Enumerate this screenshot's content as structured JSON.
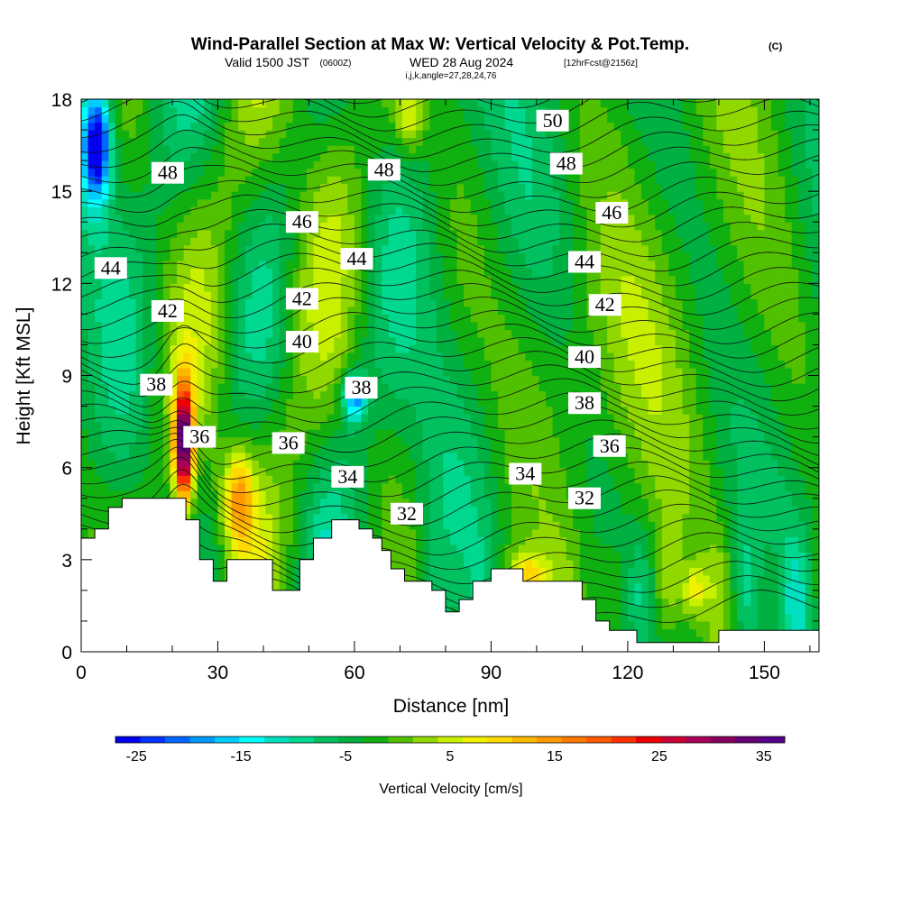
{
  "title": {
    "main": "Wind-Parallel Section at Max W: Vertical Velocity & Pot.Temp.",
    "main_suffix": "(C)",
    "sub_a": "Valid 1500 JST",
    "sub_b": "(0600Z)",
    "sub_c": "WED 28 Aug 2024",
    "sub_d": "[12hrFcst@2156z]",
    "ijk": "i,j,k,angle=27,28,24,76"
  },
  "chart_data": {
    "type": "heatmap",
    "title": "Wind-Parallel Section at Max W: Vertical Velocity & Pot.Temp.",
    "xlabel": "Distance [nm]",
    "ylabel": "Height [Kft MSL]",
    "xlim": [
      0,
      162
    ],
    "ylim": [
      0,
      18
    ],
    "xticks": [
      0,
      30,
      60,
      90,
      120,
      150
    ],
    "xtick_labels": [
      "0",
      "30",
      "60",
      "90",
      "120",
      "150"
    ],
    "yticks": [
      0,
      3,
      6,
      9,
      12,
      15,
      18
    ],
    "ytick_labels": [
      "0",
      "3",
      "6",
      "9",
      "12",
      "15",
      "18"
    ],
    "colorbar": {
      "title": "Vertical Velocity [cm/s]",
      "range": [
        -27,
        37
      ],
      "ticks": [
        -25,
        -15,
        -5,
        5,
        15,
        25,
        35
      ],
      "tick_labels": [
        "-25",
        "-15",
        "-5",
        "5",
        "15",
        "25",
        "35"
      ],
      "colors": [
        "#0000ee",
        "#0033ff",
        "#0066ff",
        "#0099ff",
        "#00ccff",
        "#00ffff",
        "#00e0c0",
        "#00d890",
        "#00c060",
        "#00b040",
        "#10b010",
        "#50c000",
        "#90d800",
        "#c8f000",
        "#f0f000",
        "#ffd800",
        "#ffb800",
        "#ff9900",
        "#ff7a00",
        "#ff5a00",
        "#ff3000",
        "#ee0000",
        "#cc0033",
        "#aa0055",
        "#88005e",
        "#660077",
        "#550088"
      ]
    },
    "pot_temp_contour_labels": [
      {
        "label": "50",
        "x": 103.5,
        "y": 17.3
      },
      {
        "label": "48",
        "x": 106.5,
        "y": 15.9
      },
      {
        "label": "48",
        "x": 19.0,
        "y": 15.6
      },
      {
        "label": "48",
        "x": 66.5,
        "y": 15.7
      },
      {
        "label": "46",
        "x": 116.5,
        "y": 14.3
      },
      {
        "label": "46",
        "x": 48.5,
        "y": 14.0
      },
      {
        "label": "44",
        "x": 6.5,
        "y": 12.5
      },
      {
        "label": "44",
        "x": 60.5,
        "y": 12.8
      },
      {
        "label": "44",
        "x": 110.5,
        "y": 12.7
      },
      {
        "label": "42",
        "x": 19.0,
        "y": 11.1
      },
      {
        "label": "42",
        "x": 48.5,
        "y": 11.5
      },
      {
        "label": "42",
        "x": 115.0,
        "y": 11.3
      },
      {
        "label": "40",
        "x": 48.5,
        "y": 10.1
      },
      {
        "label": "40",
        "x": 110.5,
        "y": 9.6
      },
      {
        "label": "38",
        "x": 16.5,
        "y": 8.7
      },
      {
        "label": "38",
        "x": 61.5,
        "y": 8.6
      },
      {
        "label": "38",
        "x": 110.5,
        "y": 8.1
      },
      {
        "label": "36",
        "x": 26.0,
        "y": 7.0
      },
      {
        "label": "36",
        "x": 45.5,
        "y": 6.8
      },
      {
        "label": "36",
        "x": 116.0,
        "y": 6.7
      },
      {
        "label": "34",
        "x": 58.5,
        "y": 5.7
      },
      {
        "label": "34",
        "x": 97.5,
        "y": 5.8
      },
      {
        "label": "32",
        "x": 71.5,
        "y": 4.5
      },
      {
        "label": "32",
        "x": 110.5,
        "y": 5.0
      }
    ],
    "terrain": [
      [
        0,
        3.7
      ],
      [
        3,
        3.7
      ],
      [
        3,
        4.0
      ],
      [
        6,
        4.0
      ],
      [
        6,
        4.7
      ],
      [
        9,
        4.7
      ],
      [
        9,
        5.0
      ],
      [
        23,
        5.0
      ],
      [
        23,
        4.3
      ],
      [
        26,
        4.3
      ],
      [
        26,
        3.0
      ],
      [
        29,
        3.0
      ],
      [
        29,
        2.3
      ],
      [
        32,
        2.3
      ],
      [
        32,
        3.0
      ],
      [
        42,
        3.0
      ],
      [
        42,
        2.0
      ],
      [
        48,
        2.0
      ],
      [
        48,
        3.0
      ],
      [
        51,
        3.0
      ],
      [
        51,
        3.7
      ],
      [
        55,
        3.7
      ],
      [
        55,
        4.3
      ],
      [
        61,
        4.3
      ],
      [
        61,
        4.0
      ],
      [
        64,
        4.0
      ],
      [
        64,
        3.7
      ],
      [
        66,
        3.7
      ],
      [
        66,
        3.3
      ],
      [
        68,
        3.3
      ],
      [
        68,
        2.7
      ],
      [
        71,
        2.7
      ],
      [
        71,
        2.3
      ],
      [
        77,
        2.3
      ],
      [
        77,
        2.0
      ],
      [
        80,
        2.0
      ],
      [
        80,
        1.3
      ],
      [
        83,
        1.3
      ],
      [
        83,
        1.7
      ],
      [
        86,
        1.7
      ],
      [
        86,
        2.3
      ],
      [
        90,
        2.3
      ],
      [
        90,
        2.7
      ],
      [
        97,
        2.7
      ],
      [
        97,
        2.3
      ],
      [
        110,
        2.3
      ],
      [
        110,
        1.7
      ],
      [
        113,
        1.7
      ],
      [
        113,
        1.0
      ],
      [
        116,
        1.0
      ],
      [
        116,
        0.7
      ],
      [
        119,
        0.7
      ],
      [
        119,
        0.7
      ],
      [
        122,
        0.7
      ],
      [
        122,
        0.3
      ],
      [
        140,
        0.3
      ],
      [
        140,
        0.7
      ],
      [
        162,
        0.7
      ]
    ],
    "w_field_features": [
      {
        "kind": "updraft",
        "x": 22.5,
        "y": 6.8,
        "sx": 2.0,
        "sy": 1.9,
        "w": 38
      },
      {
        "kind": "updraft",
        "x": 34.5,
        "y": 5.0,
        "sx": 3.5,
        "sy": 1.5,
        "w": 15
      },
      {
        "kind": "downdraft",
        "x": 3.5,
        "y": 16.5,
        "sx": 3.0,
        "sy": 1.8,
        "w": -25
      },
      {
        "kind": "downdraft",
        "x": 60.0,
        "y": 8.3,
        "sx": 2.5,
        "sy": 0.8,
        "w": -17
      },
      {
        "kind": "updraft",
        "x": 72.0,
        "y": 17.3,
        "sx": 3.0,
        "sy": 1.0,
        "w": 8
      },
      {
        "kind": "updraft",
        "x": 98.0,
        "y": 2.5,
        "sx": 4.0,
        "sy": 0.8,
        "w": 11
      },
      {
        "kind": "updraft",
        "x": 134.5,
        "y": 2.0,
        "sx": 2.5,
        "sy": 1.0,
        "w": 11
      }
    ]
  }
}
